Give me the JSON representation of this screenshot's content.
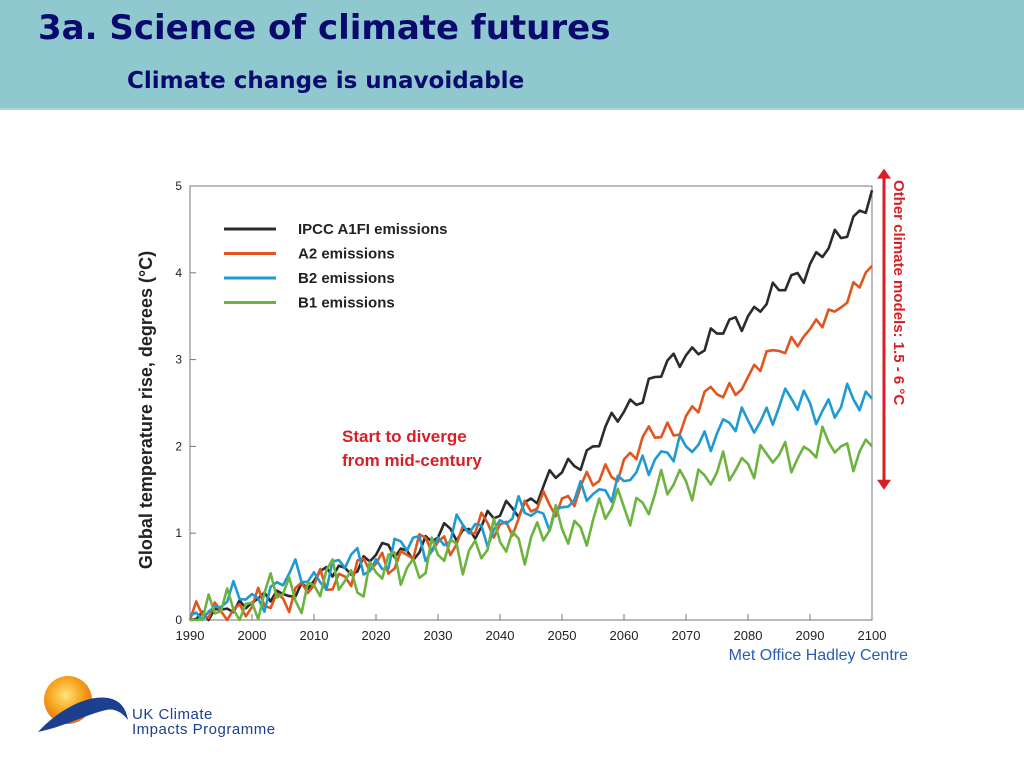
{
  "header": {
    "title": "3a. Science of climate futures",
    "subtitle": "Climate change is unavoidable"
  },
  "colors": {
    "header_bg": "#8fc9cf",
    "title_text": "#0a0a6e",
    "a1fi": "#2b2b2b",
    "a2": "#e0561e",
    "b2": "#1f9ad2",
    "b1": "#6db33f",
    "annotation": "#d91f26",
    "credit": "#2a5db0"
  },
  "chart_data": {
    "type": "line",
    "title": "",
    "xlabel": "",
    "ylabel": "Global temperature rise, degrees (°C)",
    "xlim": [
      1990,
      2100
    ],
    "ylim": [
      0,
      5
    ],
    "x_ticks": [
      "1990",
      "2000",
      "2010",
      "2020",
      "2030",
      "2040",
      "2050",
      "2060",
      "2070",
      "2080",
      "2090",
      "2100"
    ],
    "y_ticks": [
      "0",
      "1",
      "2",
      "3",
      "4",
      "5"
    ],
    "grid": false,
    "legend_position": "top-left",
    "x": [
      1990,
      1995,
      2000,
      2005,
      2010,
      2015,
      2020,
      2025,
      2030,
      2035,
      2040,
      2045,
      2050,
      2055,
      2060,
      2065,
      2070,
      2075,
      2080,
      2085,
      2090,
      2095,
      2100
    ],
    "series": [
      {
        "name": "IPCC A1FI emissions",
        "color": "#2b2b2b",
        "values": [
          0.0,
          0.12,
          0.2,
          0.3,
          0.45,
          0.6,
          0.75,
          0.8,
          0.95,
          1.05,
          1.2,
          1.4,
          1.7,
          2.0,
          2.4,
          2.8,
          3.05,
          3.3,
          3.5,
          3.8,
          4.1,
          4.4,
          4.95
        ]
      },
      {
        "name": "A2 emissions",
        "color": "#e0561e",
        "values": [
          0.0,
          0.1,
          0.15,
          0.25,
          0.4,
          0.5,
          0.65,
          0.75,
          0.9,
          1.0,
          1.1,
          1.25,
          1.4,
          1.55,
          1.85,
          2.1,
          2.35,
          2.6,
          2.8,
          3.1,
          3.35,
          3.6,
          4.08
        ]
      },
      {
        "name": "B2 emissions",
        "color": "#1f9ad2",
        "values": [
          0.05,
          0.15,
          0.3,
          0.4,
          0.55,
          0.6,
          0.7,
          0.8,
          0.95,
          1.0,
          1.15,
          1.2,
          1.3,
          1.45,
          1.6,
          1.85,
          2.0,
          2.15,
          2.3,
          2.45,
          2.5,
          2.45,
          2.55
        ]
      },
      {
        "name": "B1 emissions",
        "color": "#6db33f",
        "values": [
          0.0,
          0.1,
          0.2,
          0.3,
          0.4,
          0.45,
          0.55,
          0.6,
          0.75,
          0.8,
          0.9,
          0.95,
          1.05,
          1.15,
          1.3,
          1.45,
          1.6,
          1.7,
          1.8,
          1.9,
          1.95,
          2.0,
          2.0
        ]
      }
    ],
    "annotations": [
      {
        "text_lines": [
          "Start to diverge",
          "from mid-century"
        ],
        "color": "#d91f26"
      },
      {
        "text": "Other climate models: 1.5 - 6 °C",
        "color": "#d91f26",
        "range": [
          1.5,
          5.2
        ]
      }
    ],
    "credit": "Met Office Hadley Centre"
  },
  "logo": {
    "line1": "UK Climate",
    "line2": "Impacts Programme"
  }
}
